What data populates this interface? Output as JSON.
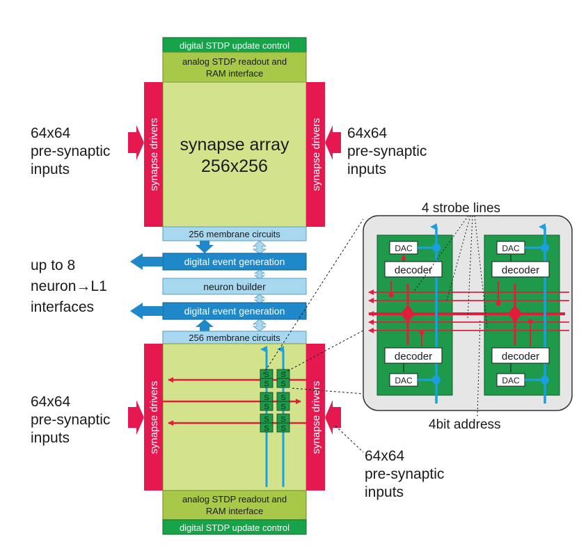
{
  "top": {
    "digital_control": "digital STDP update control",
    "analog_readout_line1": "analog STDP readout and",
    "analog_readout_line2": "RAM interface",
    "synapse_drivers_left": "synapse drivers",
    "synapse_drivers_right": "synapse drivers",
    "array_line1": "synapse array",
    "array_line2": "256x256",
    "input_left": [
      "64x64",
      "pre-synaptic",
      "inputs"
    ],
    "input_right": [
      "64x64",
      "pre-synaptic",
      "inputs"
    ],
    "membrane": "256 membrane circuits"
  },
  "middle": {
    "event_gen_upper": "digital event generation",
    "neuron_builder": "neuron builder",
    "event_gen_lower": "digital event generation",
    "output_label": [
      "up to 8",
      "neuron→L1",
      "interfaces"
    ]
  },
  "bottom": {
    "membrane": "256 membrane circuits",
    "synapse_drivers_left": "synapse drivers",
    "synapse_drivers_right": "synapse drivers",
    "synapse_glyph": "S",
    "input_left": [
      "64x64",
      "pre-synaptic",
      "inputs"
    ],
    "input_right": [
      "64x64",
      "pre-synaptic",
      "inputs"
    ],
    "analog_readout_line1": "analog STDP readout and",
    "analog_readout_line2": "RAM interface",
    "digital_control": "digital STDP update control"
  },
  "detail": {
    "strobe_label": "4 strobe lines",
    "address_label": "4bit address",
    "dac": "DAC",
    "decoder": "decoder"
  },
  "colors": {
    "array_fill": "#d3e38c",
    "control_green": "#16a34a",
    "driver_red": "#e5184f",
    "event_blue": "#1e88c8",
    "membrane_lightblue": "#a8d8f0",
    "wire_red": "#e01e3c",
    "wire_blue": "#1aa0e0",
    "detail_bg": "#e6e6e6",
    "detail_green": "#1f9a4a"
  }
}
